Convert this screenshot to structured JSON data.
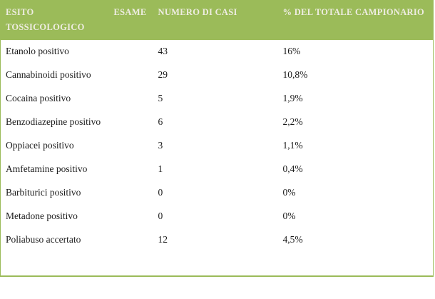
{
  "colors": {
    "header_bg": "#9BBB59",
    "header_text": "#EEECE1",
    "body_text": "#1A1A1A",
    "border": "#9BBB59",
    "row_bg": "#FFFFFF"
  },
  "table": {
    "columns": [
      {
        "label": "ESITO TOSSICOLOGICO"
      },
      {
        "label": "ESAME"
      },
      {
        "label": "NUMERO DI CASI"
      },
      {
        "label": "% DEL TOTALE CAMPIONARIO"
      }
    ],
    "rows": [
      {
        "esito": "Etanolo positivo",
        "esame": "",
        "numero": "43",
        "percentuale": "16%"
      },
      {
        "esito": "Cannabinoidi positivo",
        "esame": "",
        "numero": "29",
        "percentuale": "10,8%"
      },
      {
        "esito": "Cocaina positivo",
        "esame": "",
        "numero": "5",
        "percentuale": "1,9%"
      },
      {
        "esito": "Benzodiazepine positivo",
        "esame": "",
        "numero": "6",
        "percentuale": "2,2%"
      },
      {
        "esito": "Oppiacei positivo",
        "esame": "",
        "numero": "3",
        "percentuale": "1,1%"
      },
      {
        "esito": "Amfetamine positivo",
        "esame": "",
        "numero": "1",
        "percentuale": "0,4%"
      },
      {
        "esito": "Barbiturici positivo",
        "esame": "",
        "numero": "0",
        "percentuale": "0%"
      },
      {
        "esito": "Metadone positivo",
        "esame": "",
        "numero": "0",
        "percentuale": "0%"
      },
      {
        "esito": "Poliabuso accertato",
        "esame": "",
        "numero": "12",
        "percentuale": "4,5%"
      }
    ]
  },
  "chart_data": {
    "type": "table",
    "columns": [
      "ESITO TOSSICOLOGICO",
      "ESAME",
      "NUMERO DI CASI",
      "% DEL TOTALE CAMPIONARIO"
    ],
    "categories": [
      "Etanolo positivo",
      "Cannabinoidi positivo",
      "Cocaina positivo",
      "Benzodiazepine positivo",
      "Oppiacei positivo",
      "Amfetamine positivo",
      "Barbiturici positivo",
      "Metadone positivo",
      "Poliabuso accertato"
    ],
    "numero_di_casi": [
      43,
      29,
      5,
      6,
      3,
      1,
      0,
      0,
      12
    ],
    "percentuale_totale_campionario": [
      "16%",
      "10,8%",
      "1,9%",
      "2,2%",
      "1,1%",
      "0,4%",
      "0%",
      "0%",
      "4,5%"
    ]
  }
}
